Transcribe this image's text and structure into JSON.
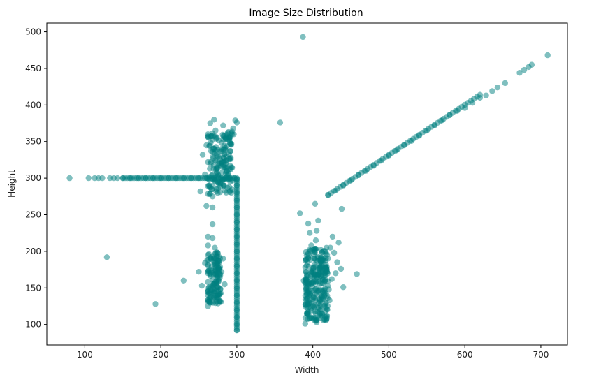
{
  "chart_data": {
    "type": "scatter",
    "title": "Image Size Distribution",
    "xlabel": "Width",
    "ylabel": "Height",
    "xlim": [
      50,
      735
    ],
    "ylim": [
      72,
      512
    ],
    "x_ticks": [
      100,
      200,
      300,
      400,
      500,
      600,
      700
    ],
    "y_ticks": [
      100,
      150,
      200,
      250,
      300,
      350,
      400,
      450,
      500
    ],
    "grid": false,
    "legend": "none",
    "marker_color": "#008080",
    "marker_alpha": 0.5,
    "series": [
      {
        "points": [
          [
            80,
            300
          ],
          [
            105,
            300
          ],
          [
            113,
            300
          ],
          [
            118,
            300
          ],
          [
            123,
            300
          ],
          [
            133,
            300
          ],
          [
            138,
            300
          ],
          [
            143,
            300
          ],
          [
            150,
            300
          ],
          [
            160,
            300
          ],
          [
            170,
            300
          ],
          [
            180,
            300
          ],
          [
            190,
            300
          ],
          [
            200,
            300
          ],
          [
            210,
            300
          ],
          [
            220,
            300
          ],
          [
            230,
            300
          ],
          [
            240,
            300
          ],
          [
            250,
            300
          ],
          [
            260,
            300
          ],
          [
            270,
            300
          ],
          [
            280,
            300
          ],
          [
            290,
            300
          ],
          [
            297,
            300
          ],
          [
            300,
            298
          ],
          [
            300,
            290
          ],
          [
            300,
            280
          ],
          [
            300,
            270
          ],
          [
            300,
            260
          ],
          [
            300,
            250
          ],
          [
            300,
            240
          ],
          [
            300,
            230
          ],
          [
            300,
            220
          ],
          [
            300,
            210
          ],
          [
            300,
            200
          ],
          [
            300,
            190
          ],
          [
            300,
            180
          ],
          [
            300,
            170
          ],
          [
            300,
            160
          ],
          [
            300,
            150
          ],
          [
            300,
            140
          ],
          [
            300,
            130
          ],
          [
            300,
            120
          ],
          [
            300,
            110
          ],
          [
            300,
            100
          ],
          [
            300,
            92
          ],
          [
            129,
            192
          ],
          [
            193,
            128
          ],
          [
            230,
            160
          ],
          [
            357,
            376
          ],
          [
            387,
            493
          ],
          [
            383,
            252
          ],
          [
            403,
            265
          ],
          [
            438,
            258
          ],
          [
            458,
            169
          ],
          [
            440,
            151
          ],
          [
            413,
            134
          ],
          [
            255,
            332
          ],
          [
            260,
            345
          ],
          [
            262,
            360
          ],
          [
            265,
            375
          ],
          [
            268,
            352
          ],
          [
            270,
            340
          ],
          [
            272,
            365
          ],
          [
            275,
            330
          ],
          [
            277,
            318
          ],
          [
            280,
            348
          ],
          [
            282,
            372
          ],
          [
            285,
            338
          ],
          [
            287,
            310
          ],
          [
            290,
            355
          ],
          [
            292,
            328
          ],
          [
            295,
            368
          ],
          [
            298,
            379
          ],
          [
            300,
            376
          ],
          [
            270,
            380
          ],
          [
            264,
            290
          ],
          [
            268,
            275
          ],
          [
            273,
            282
          ],
          [
            278,
            295
          ],
          [
            260,
            262
          ],
          [
            268,
            260
          ],
          [
            252,
            282
          ],
          [
            258,
            305
          ],
          [
            283,
            290
          ],
          [
            288,
            305
          ],
          [
            293,
            315
          ],
          [
            296,
            360
          ],
          [
            262,
            322
          ],
          [
            262,
            220
          ],
          [
            262,
            208
          ],
          [
            262,
            195
          ],
          [
            262,
            182
          ],
          [
            262,
            170
          ],
          [
            262,
            158
          ],
          [
            262,
            145
          ],
          [
            262,
            133
          ],
          [
            262,
            125
          ],
          [
            268,
            237
          ],
          [
            268,
            218
          ],
          [
            271,
            205
          ],
          [
            266,
            190
          ],
          [
            272,
            175
          ],
          [
            276,
            160
          ],
          [
            270,
            148
          ],
          [
            266,
            138
          ],
          [
            280,
            172
          ],
          [
            282,
            190
          ],
          [
            250,
            172
          ],
          [
            254,
            153
          ],
          [
            258,
            184
          ],
          [
            278,
            142
          ],
          [
            284,
            155
          ],
          [
            390,
            101
          ],
          [
            392,
            115
          ],
          [
            395,
            128
          ],
          [
            397,
            140
          ],
          [
            399,
            152
          ],
          [
            400,
            165
          ],
          [
            401,
            178
          ],
          [
            402,
            190
          ],
          [
            403,
            203
          ],
          [
            404,
            215
          ],
          [
            405,
            228
          ],
          [
            407,
            242
          ],
          [
            410,
            120
          ],
          [
            413,
            145
          ],
          [
            416,
            160
          ],
          [
            418,
            175
          ],
          [
            420,
            190
          ],
          [
            423,
            205
          ],
          [
            426,
            220
          ],
          [
            428,
            198
          ],
          [
            430,
            170
          ],
          [
            432,
            185
          ],
          [
            434,
            212
          ],
          [
            394,
            238
          ],
          [
            396,
            225
          ],
          [
            398,
            208
          ],
          [
            409,
            135
          ],
          [
            421,
            148
          ],
          [
            425,
            162
          ],
          [
            437,
            176
          ],
          [
            388,
            160
          ],
          [
            391,
            172
          ],
          [
            393,
            185
          ],
          [
            405,
            103
          ],
          [
            411,
            112
          ],
          [
            417,
            128
          ],
          [
            419,
            139
          ],
          [
            422,
            133
          ],
          [
            420,
            277
          ],
          [
            430,
            283
          ],
          [
            440,
            290
          ],
          [
            450,
            297
          ],
          [
            460,
            304
          ],
          [
            470,
            310
          ],
          [
            480,
            317
          ],
          [
            490,
            324
          ],
          [
            500,
            331
          ],
          [
            510,
            338
          ],
          [
            520,
            345
          ],
          [
            530,
            351
          ],
          [
            540,
            358
          ],
          [
            550,
            365
          ],
          [
            560,
            372
          ],
          [
            570,
            379
          ],
          [
            580,
            386
          ],
          [
            590,
            392
          ],
          [
            600,
            396
          ],
          [
            610,
            403
          ],
          [
            620,
            410
          ],
          [
            628,
            413
          ],
          [
            636,
            419
          ],
          [
            643,
            424
          ],
          [
            653,
            430
          ],
          [
            672,
            444
          ],
          [
            678,
            448
          ],
          [
            684,
            452
          ],
          [
            688,
            455
          ],
          [
            709,
            468
          ]
        ]
      }
    ]
  }
}
